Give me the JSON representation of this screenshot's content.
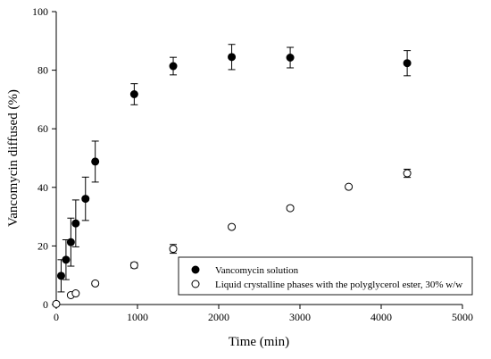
{
  "chart_data": {
    "type": "scatter",
    "title": "",
    "xlabel": "Time (min)",
    "ylabel": "Vancomycin diffused (%)",
    "xlim": [
      0,
      5000
    ],
    "ylim": [
      0,
      100
    ],
    "x_ticks": [
      0,
      1000,
      2000,
      3000,
      4000,
      5000
    ],
    "y_ticks": [
      0,
      20,
      40,
      60,
      80,
      100
    ],
    "grid": false,
    "legend_position": "bottom-right",
    "series": [
      {
        "name": "Vancomycin solution",
        "marker": "filled-circle",
        "color": "#000000",
        "x": [
          60,
          120,
          180,
          240,
          360,
          480,
          960,
          1440,
          2160,
          2880,
          4320
        ],
        "y": [
          9.8,
          15.3,
          21.3,
          27.7,
          36.1,
          48.8,
          71.8,
          81.4,
          84.5,
          84.3,
          82.4
        ],
        "error": [
          5.5,
          6.8,
          8.2,
          8.0,
          7.4,
          7.0,
          3.6,
          3.0,
          4.3,
          3.5,
          4.3
        ]
      },
      {
        "name": "Liquid crystalline phases with the polyglycerol ester, 30% w/w",
        "marker": "open-circle",
        "color": "#000000",
        "x": [
          0,
          180,
          240,
          480,
          960,
          1440,
          2160,
          2880,
          3600,
          4320
        ],
        "y": [
          0.2,
          3.2,
          3.8,
          7.2,
          13.4,
          19.0,
          26.5,
          32.9,
          40.2,
          44.8
        ],
        "error": [
          0,
          0.5,
          0.5,
          0.6,
          0.9,
          1.5,
          0.5,
          0.6,
          0.5,
          1.4
        ]
      }
    ]
  }
}
